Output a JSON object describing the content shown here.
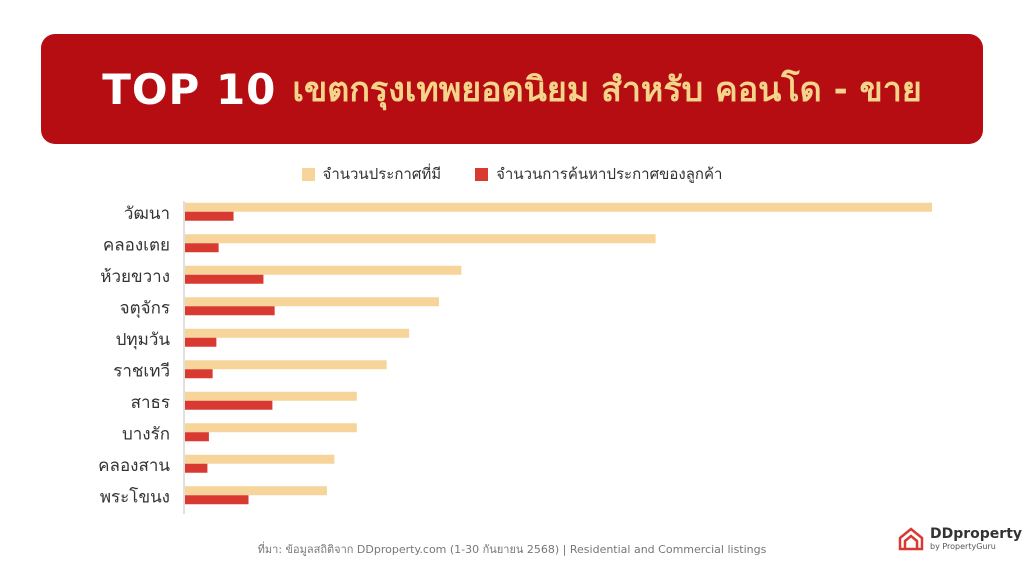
{
  "header": {
    "title_main": "TOP 10",
    "title_sub": "เขตกรุงเทพยอดนิยม สำหรับ คอนโด - ขาย"
  },
  "colors": {
    "banner": "#b50d12",
    "listings": "#f6d49a",
    "searches": "#d83a32",
    "title_sub": "#f4d48a"
  },
  "chart_data": {
    "type": "bar",
    "orientation": "horizontal",
    "categories": [
      "วัฒนา",
      "คลองเตย",
      "ห้วยขวาง",
      "จตุจักร",
      "ปทุมวัน",
      "ราชเทวี",
      "สาธร",
      "บางรัก",
      "คลองสาน",
      "พระโขนง"
    ],
    "series": [
      {
        "name": "จำนวนประกาศที่มี",
        "color": "#f6d49a",
        "values": [
          100,
          63,
          37,
          34,
          30,
          27,
          23,
          23,
          20,
          19
        ]
      },
      {
        "name": "จำนวนการค้นหาประกาศของลูกค้า",
        "color": "#d83a32",
        "values": [
          6.5,
          4.5,
          10.5,
          12,
          4.2,
          3.7,
          11.7,
          3.2,
          3.0,
          8.5
        ]
      }
    ],
    "xlim": [
      0,
      100
    ],
    "grid": false,
    "legend": "top"
  },
  "footer": {
    "source": "ที่มา: ข้อมูลสถิติจาก DDproperty.com (1-30 กันยายน 2568) | Residential and Commercial listings"
  },
  "logo": {
    "name": "DDproperty",
    "tagline": "by PropertyGuru"
  }
}
